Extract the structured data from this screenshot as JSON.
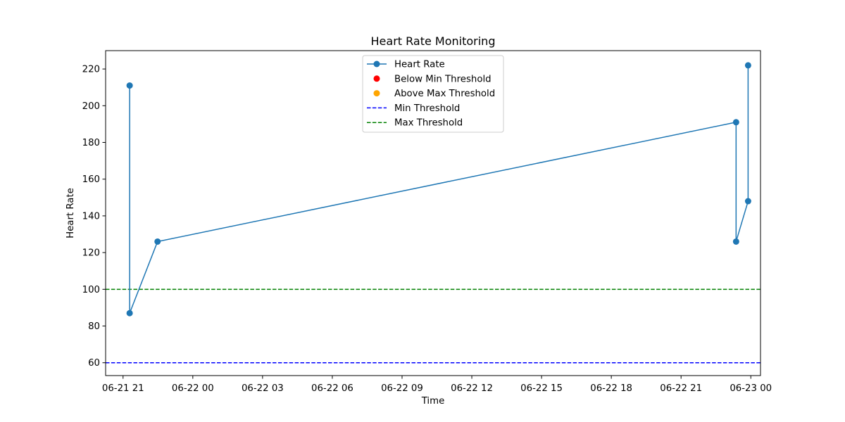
{
  "chart_data": {
    "type": "line",
    "title": "Heart Rate Monitoring",
    "xlabel": "Time",
    "ylabel": "Heart Rate",
    "x_ticks": [
      "06-21 21",
      "06-22 00",
      "06-22 03",
      "06-22 06",
      "06-22 09",
      "06-22 12",
      "06-22 15",
      "06-22 18",
      "06-22 21",
      "06-23 00"
    ],
    "x_tick_times": [
      "2024-06-21T21:00",
      "2024-06-22T00:00",
      "2024-06-22T03:00",
      "2024-06-22T06:00",
      "2024-06-22T09:00",
      "2024-06-22T12:00",
      "2024-06-22T15:00",
      "2024-06-22T18:00",
      "2024-06-22T21:00",
      "2024-06-23T00:00"
    ],
    "xlim": [
      "2024-06-21T20:15",
      "2024-06-23T00:25"
    ],
    "y_ticks": [
      60,
      80,
      100,
      120,
      140,
      160,
      180,
      200,
      220
    ],
    "ylim": [
      53,
      230
    ],
    "grid": false,
    "legend_position": "top-center",
    "series": [
      {
        "name": "Heart Rate",
        "color": "#1f77b4",
        "style": "line-with-markers",
        "points": [
          {
            "x": "2024-06-21T21:17",
            "y": 211
          },
          {
            "x": "2024-06-21T21:17",
            "y": 87
          },
          {
            "x": "2024-06-21T22:29",
            "y": 126
          },
          {
            "x": "2024-06-22T23:22",
            "y": 191
          },
          {
            "x": "2024-06-22T23:22",
            "y": 126
          },
          {
            "x": "2024-06-22T23:53",
            "y": 148
          },
          {
            "x": "2024-06-22T23:53",
            "y": 222
          }
        ]
      },
      {
        "name": "Below Min Threshold",
        "color": "#ff0000",
        "style": "scatter",
        "points": []
      },
      {
        "name": "Above Max Threshold",
        "color": "#ffa500",
        "style": "scatter",
        "points": []
      }
    ],
    "thresholds": [
      {
        "name": "Min Threshold",
        "value": 60,
        "color": "#0000ff",
        "style": "dashed"
      },
      {
        "name": "Max Threshold",
        "value": 100,
        "color": "#008000",
        "style": "dashed"
      }
    ],
    "legend": [
      {
        "label": "Heart Rate",
        "kind": "line-marker",
        "color": "#1f77b4"
      },
      {
        "label": "Below Min Threshold",
        "kind": "marker",
        "color": "#ff0000"
      },
      {
        "label": "Above Max Threshold",
        "kind": "marker",
        "color": "#ffa500"
      },
      {
        "label": "Min Threshold",
        "kind": "dashed",
        "color": "#0000ff"
      },
      {
        "label": "Max Threshold",
        "kind": "dashed",
        "color": "#008000"
      }
    ]
  }
}
